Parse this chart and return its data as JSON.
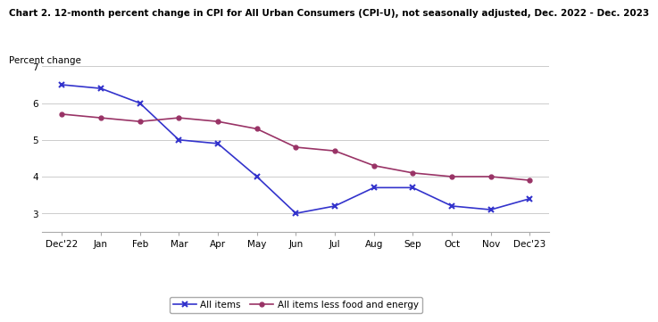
{
  "title": "Chart 2. 12-month percent change in CPI for All Urban Consumers (CPI-U), not seasonally adjusted, Dec. 2022 - Dec. 2023",
  "ylabel": "Percent change",
  "x_labels": [
    "Dec'22",
    "Jan",
    "Feb",
    "Mar",
    "Apr",
    "May",
    "Jun",
    "Jul",
    "Aug",
    "Sep",
    "Oct",
    "Nov",
    "Dec'23"
  ],
  "all_items": [
    6.5,
    6.4,
    6.0,
    5.0,
    4.9,
    4.0,
    3.0,
    3.2,
    3.7,
    3.7,
    3.2,
    3.1,
    3.4
  ],
  "core_items": [
    5.7,
    5.6,
    5.5,
    5.6,
    5.5,
    5.3,
    4.8,
    4.7,
    4.3,
    4.1,
    4.0,
    4.0,
    3.9
  ],
  "ylim": [
    2.5,
    7.0
  ],
  "yticks": [
    3,
    4,
    5,
    6,
    7
  ],
  "all_items_color": "#3333cc",
  "core_items_color": "#993366",
  "title_fontsize": 7.5,
  "label_fontsize": 7.5,
  "tick_fontsize": 7.5,
  "legend_fontsize": 7.5,
  "background_color": "#ffffff",
  "grid_color": "#cccccc"
}
